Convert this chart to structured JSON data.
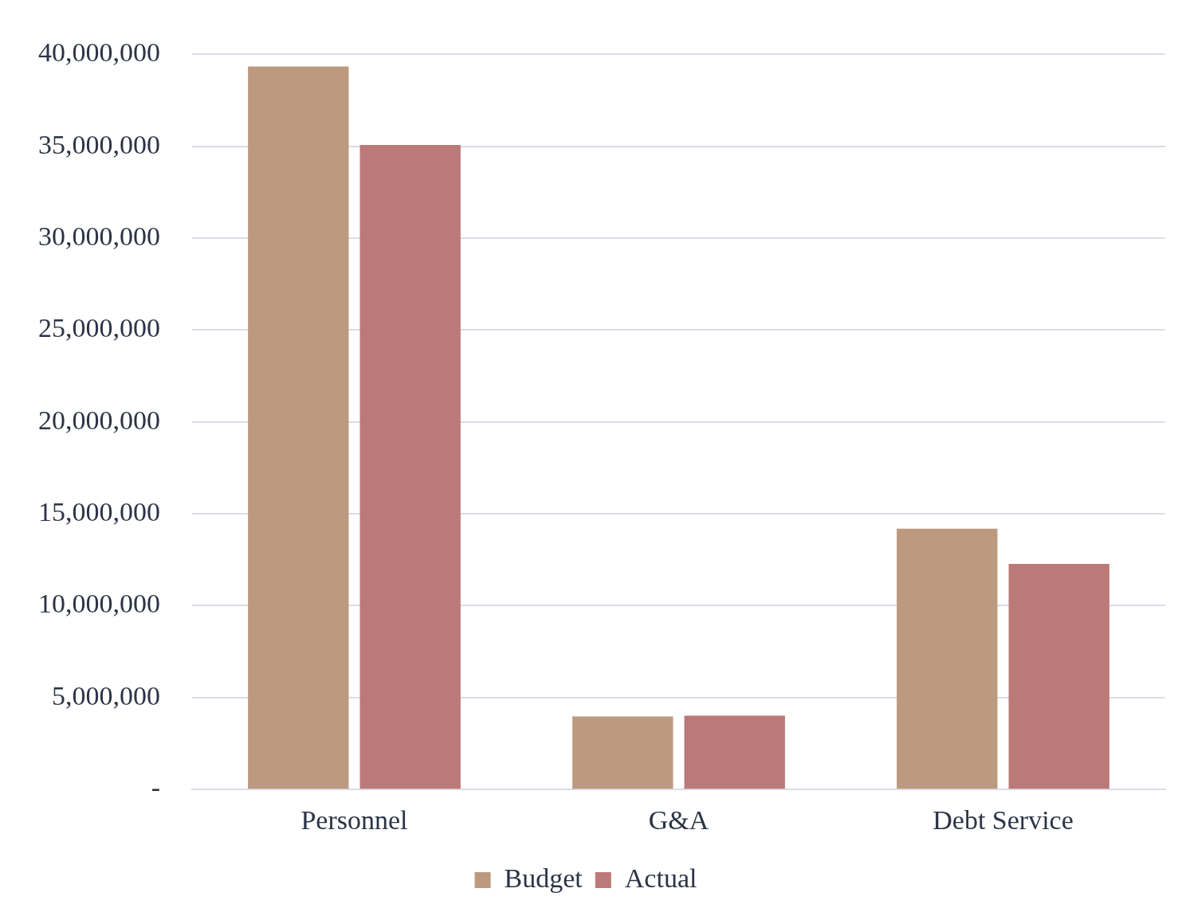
{
  "chart_data": {
    "type": "bar",
    "categories": [
      "Personnel",
      "G&A",
      "Debt Service"
    ],
    "series": [
      {
        "name": "Budget",
        "color": "#bb9a80",
        "values": [
          39350000,
          3980000,
          14190000
        ]
      },
      {
        "name": "Actual",
        "color": "#bb7a78",
        "values": [
          35080000,
          4020000,
          12280000
        ]
      }
    ],
    "ylim": [
      0,
      40000000
    ],
    "yticks": [
      {
        "value": 0,
        "label": "-"
      },
      {
        "value": 5000000,
        "label": "5,000,000"
      },
      {
        "value": 10000000,
        "label": "10,000,000"
      },
      {
        "value": 15000000,
        "label": "15,000,000"
      },
      {
        "value": 20000000,
        "label": "20,000,000"
      },
      {
        "value": 25000000,
        "label": "25,000,000"
      },
      {
        "value": 30000000,
        "label": "30,000,000"
      },
      {
        "value": 35000000,
        "label": "35,000,000"
      },
      {
        "value": 40000000,
        "label": "40,000,000"
      }
    ],
    "grid": "y",
    "legend": "bottom"
  }
}
